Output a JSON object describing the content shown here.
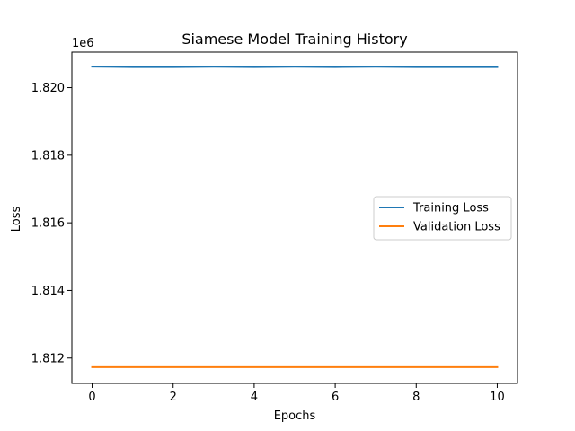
{
  "chart_data": {
    "type": "line",
    "title": "Siamese Model Training History",
    "xlabel": "Epochs",
    "ylabel": "Loss",
    "y_offset_label": "1e6",
    "x": [
      0,
      1,
      2,
      3,
      4,
      5,
      6,
      7,
      8,
      9,
      10
    ],
    "xlim": [
      -0.5,
      10.5
    ],
    "ylim": [
      1.81125,
      1.82105
    ],
    "x_ticks": [
      0,
      2,
      4,
      6,
      8,
      10
    ],
    "x_tick_labels": [
      "0",
      "2",
      "4",
      "6",
      "8",
      "10"
    ],
    "y_ticks": [
      1.812,
      1.814,
      1.816,
      1.818,
      1.82
    ],
    "y_tick_labels": [
      "1.812",
      "1.814",
      "1.816",
      "1.818",
      "1.820"
    ],
    "grid": false,
    "legend_position": "center-right",
    "series": [
      {
        "name": "Training Loss",
        "color": "#1f77b4",
        "values": [
          1.82062,
          1.82061,
          1.82061,
          1.82062,
          1.82061,
          1.82062,
          1.82061,
          1.82062,
          1.82061,
          1.82061,
          1.82061
        ]
      },
      {
        "name": "Validation Loss",
        "color": "#ff7f0e",
        "values": [
          1.81173,
          1.81173,
          1.81173,
          1.81173,
          1.81173,
          1.81173,
          1.81173,
          1.81173,
          1.81173,
          1.81173,
          1.81173
        ]
      }
    ]
  }
}
